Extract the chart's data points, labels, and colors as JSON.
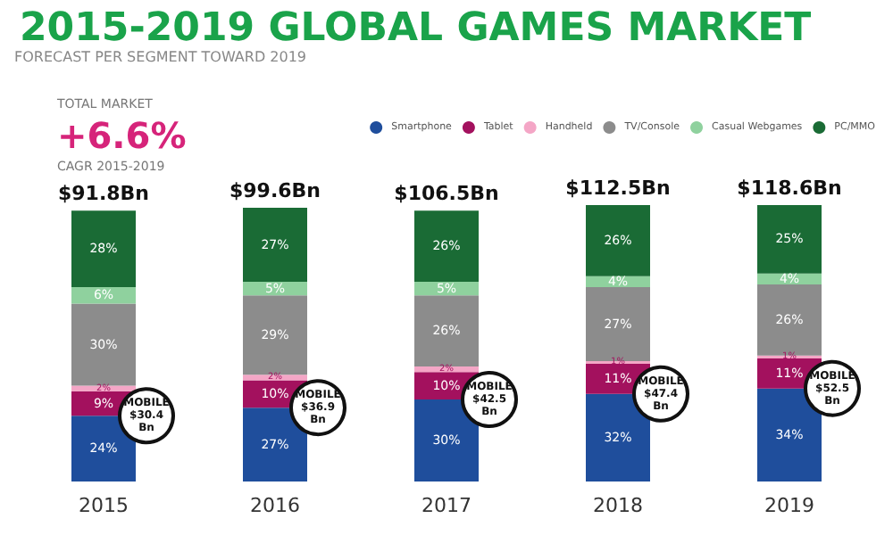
{
  "chart_data": {
    "type": "bar",
    "title": "2015-2019 GLOBAL GAMES MARKET",
    "subtitle": "FORECAST PER SEGMENT TOWARD 2019",
    "stacked": true,
    "legend": "top right",
    "categories": [
      "2015",
      "2016",
      "2017",
      "2018",
      "2019"
    ],
    "series": [
      {
        "name": "Smartphone",
        "color": "#1f4e9c",
        "values": [
          24,
          27,
          30,
          32,
          34
        ],
        "value_labels": [
          "24%",
          "27%",
          "30%",
          "32%",
          "34%"
        ]
      },
      {
        "name": "Tablet",
        "color": "#a3115e",
        "values": [
          9,
          10,
          10,
          11,
          11
        ],
        "value_labels": [
          "9%",
          "10%",
          "10%",
          "11%",
          "11%"
        ]
      },
      {
        "name": "Handheld",
        "color": "#f4a6c6",
        "values": [
          2,
          2,
          2,
          1,
          1
        ],
        "value_labels": [
          "2%",
          "2%",
          "2%",
          "1%",
          "1%"
        ]
      },
      {
        "name": "TV/Console",
        "color": "#8c8c8c",
        "values": [
          30,
          29,
          26,
          27,
          26
        ],
        "value_labels": [
          "30%",
          "29%",
          "26%",
          "27%",
          "26%"
        ]
      },
      {
        "name": "Casual Webgames",
        "color": "#8fd19e",
        "values": [
          6,
          5,
          5,
          4,
          4
        ],
        "value_labels": [
          "6%",
          "5%",
          "5%",
          "4%",
          "4%"
        ]
      },
      {
        "name": "PC/MMO",
        "color": "#1a6b35",
        "values": [
          28,
          27,
          26,
          26,
          25
        ],
        "value_labels": [
          "28%",
          "27%",
          "26%",
          "26%",
          "25%"
        ]
      }
    ],
    "annotations": [
      "TOTAL MARKET",
      "+6.6%",
      "CAGR 2015-2019",
      "$91.8Bn",
      "$99.6Bn",
      "$106.5Bn",
      "$112.5Bn",
      "$118.6Bn",
      {
        "text": "MOBILE $30.4 Bn",
        "x": "2015",
        "y": 24
      },
      {
        "text": "MOBILE $36.9 Bn",
        "x": "2016",
        "y": 27
      },
      {
        "text": "MOBILE $42.5 Bn",
        "x": "2017",
        "y": 30
      },
      {
        "text": "MOBILE $47.4 Bn",
        "x": "2018",
        "y": 32
      },
      {
        "text": "MOBILE $52.5 Bn",
        "x": "2019",
        "y": 34
      }
    ]
  }
}
